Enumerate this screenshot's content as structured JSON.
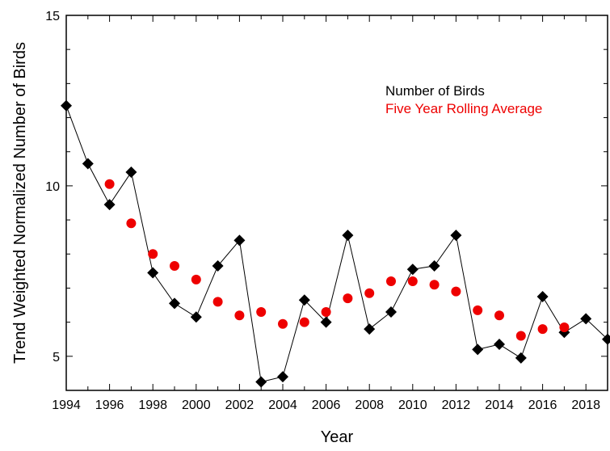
{
  "chart_data": {
    "type": "scatter",
    "title": "",
    "xlabel": "Year",
    "ylabel": "Trend Weighted Normalized Number of Birds",
    "xlim": [
      1994,
      2019
    ],
    "ylim": [
      4,
      15
    ],
    "x_ticks": [
      1994,
      1996,
      1998,
      2000,
      2002,
      2004,
      2006,
      2008,
      2010,
      2012,
      2014,
      2016,
      2018
    ],
    "y_ticks": [
      5,
      10,
      15
    ],
    "grid": false,
    "legend_position": "top-right",
    "series": [
      {
        "name": "Number of Birds",
        "color": "#000000",
        "marker": "diamond",
        "line": true,
        "points": [
          [
            1994,
            12.35
          ],
          [
            1995,
            10.65
          ],
          [
            1996,
            9.45
          ],
          [
            1997,
            10.4
          ],
          [
            1998,
            7.45
          ],
          [
            1999,
            6.55
          ],
          [
            2000,
            6.15
          ],
          [
            2001,
            7.65
          ],
          [
            2002,
            8.4
          ],
          [
            2003,
            4.25
          ],
          [
            2004,
            4.4
          ],
          [
            2005,
            6.65
          ],
          [
            2006,
            6.0
          ],
          [
            2007,
            8.55
          ],
          [
            2008,
            5.8
          ],
          [
            2009,
            6.3
          ],
          [
            2010,
            7.55
          ],
          [
            2011,
            7.65
          ],
          [
            2012,
            8.55
          ],
          [
            2013,
            5.2
          ],
          [
            2014,
            5.35
          ],
          [
            2015,
            4.95
          ],
          [
            2016,
            6.75
          ],
          [
            2017,
            5.7
          ],
          [
            2018,
            6.1
          ],
          [
            2019,
            5.5
          ]
        ]
      },
      {
        "name": "Five Year Rolling Average",
        "color": "#ee0000",
        "marker": "circle",
        "line": false,
        "points": [
          [
            1996,
            10.05
          ],
          [
            1997,
            8.9
          ],
          [
            1998,
            8.0
          ],
          [
            1999,
            7.65
          ],
          [
            2000,
            7.25
          ],
          [
            2001,
            6.6
          ],
          [
            2002,
            6.2
          ],
          [
            2003,
            6.3
          ],
          [
            2004,
            5.95
          ],
          [
            2005,
            6.0
          ],
          [
            2006,
            6.3
          ],
          [
            2007,
            6.7
          ],
          [
            2008,
            6.85
          ],
          [
            2009,
            7.2
          ],
          [
            2010,
            7.2
          ],
          [
            2011,
            7.1
          ],
          [
            2012,
            6.9
          ],
          [
            2013,
            6.35
          ],
          [
            2014,
            6.2
          ],
          [
            2015,
            5.6
          ],
          [
            2016,
            5.8
          ],
          [
            2017,
            5.85
          ]
        ]
      }
    ]
  }
}
